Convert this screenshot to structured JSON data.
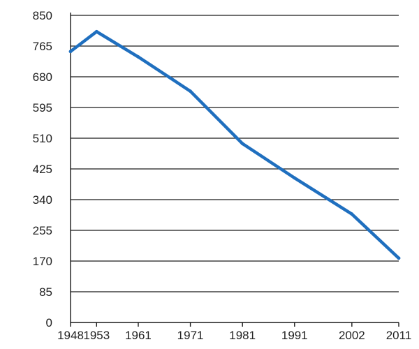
{
  "chart_data": {
    "type": "line",
    "title": "",
    "xlabel": "",
    "ylabel": "",
    "x": [
      "1948",
      "1953",
      "1961",
      "1971",
      "1981",
      "1991",
      "2002",
      "2011"
    ],
    "series": [
      {
        "values": [
          750,
          805,
          735,
          640,
          495,
          400,
          300,
          178
        ]
      }
    ],
    "yticks": [
      0,
      85,
      170,
      255,
      340,
      425,
      510,
      595,
      680,
      765,
      850
    ],
    "ylim": [
      0,
      850
    ],
    "grid": true,
    "legend": "none",
    "colors": {
      "series": "#1f6fbf",
      "grid": "#1a1a1a",
      "text": "#222222"
    }
  }
}
